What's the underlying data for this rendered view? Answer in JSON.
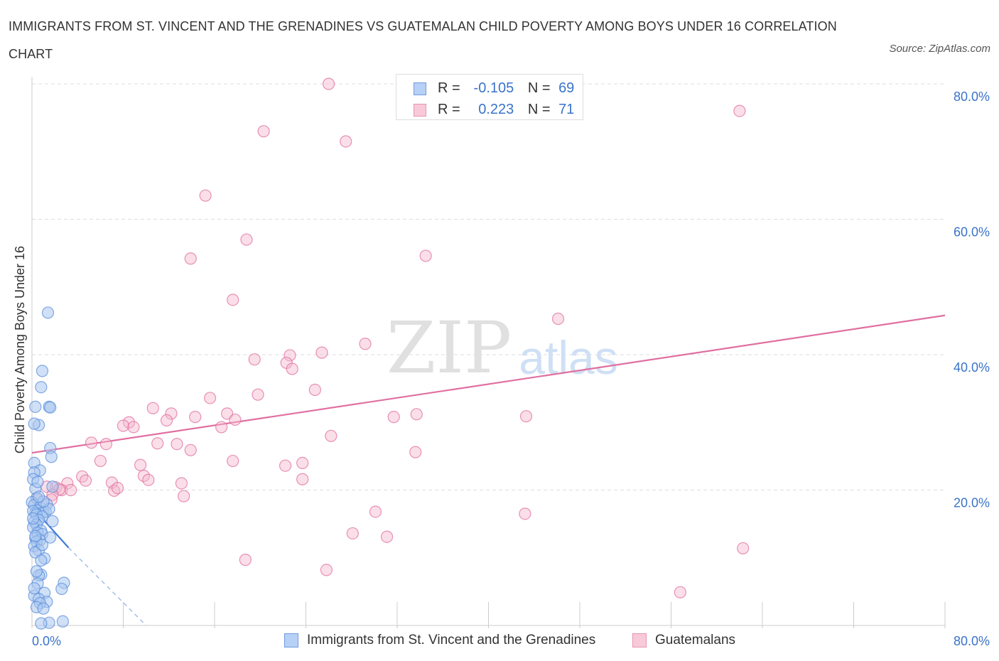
{
  "header": {
    "title": "IMMIGRANTS FROM ST. VINCENT AND THE GRENADINES VS GUATEMALAN CHILD POVERTY AMONG BOYS UNDER 16 CORRELATION CHART",
    "source": "Source: ZipAtlas.com"
  },
  "colors": {
    "blue": "#5b8fd9",
    "blue_fill": "#a9c6f0",
    "pink": "#e06fa0",
    "pink_fill": "#f5b8cd",
    "tick_text": "#3a73c9",
    "grid": "#dddddd"
  },
  "legend": {
    "series1": {
      "r_label": "R =",
      "r_value": "-0.105",
      "n_label": "N =",
      "n_value": "69"
    },
    "series2": {
      "r_label": "R =",
      "r_value": "0.223",
      "n_label": "N =",
      "n_value": "71"
    }
  },
  "watermark": {
    "zip": "ZIP",
    "atlas": "atlas"
  },
  "chart_data": {
    "type": "scatter",
    "title": "IMMIGRANTS FROM ST. VINCENT AND THE GRENADINES VS GUATEMALAN CHILD POVERTY AMONG BOYS UNDER 16 CORRELATION CHART",
    "xlabel": "",
    "ylabel": "Child Poverty Among Boys Under 16",
    "xlim": [
      0,
      80
    ],
    "ylim": [
      0,
      80
    ],
    "x_tick_labels": [
      "0.0%",
      "80.0%"
    ],
    "y_ticks": [
      20,
      40,
      60,
      80
    ],
    "y_tick_labels": [
      "20.0%",
      "40.0%",
      "60.0%",
      "80.0%"
    ],
    "grid": true,
    "legend_position": "top-center",
    "series": [
      {
        "name": "Immigrants from St. Vincent and the Grenadines",
        "color": "#5b8fd9",
        "R": -0.105,
        "N": 69,
        "trend": {
          "x0": 0,
          "y0": 17.5,
          "x1": 3.2,
          "y1": 11.5,
          "dashed_to_x": 10,
          "dashed_to_y": 0
        },
        "points": [
          [
            1.4,
            46.2
          ],
          [
            0.9,
            37.6
          ],
          [
            0.8,
            35.2
          ],
          [
            1.5,
            32.3
          ],
          [
            0.3,
            32.3
          ],
          [
            1.6,
            32.2
          ],
          [
            0.6,
            29.6
          ],
          [
            0.2,
            29.8
          ],
          [
            1.6,
            26.2
          ],
          [
            1.7,
            24.9
          ],
          [
            0.2,
            24.0
          ],
          [
            0.7,
            22.9
          ],
          [
            0.2,
            22.6
          ],
          [
            0.1,
            21.6
          ],
          [
            1.8,
            20.5
          ],
          [
            0.3,
            20.2
          ],
          [
            0.4,
            18.8
          ],
          [
            0.0,
            18.2
          ],
          [
            0.2,
            17.8
          ],
          [
            0.7,
            17.5
          ],
          [
            1.3,
            17.9
          ],
          [
            0.5,
            17.0
          ],
          [
            0.3,
            16.6
          ],
          [
            0.1,
            16.9
          ],
          [
            1.0,
            16.7
          ],
          [
            1.2,
            16.8
          ],
          [
            1.5,
            17.2
          ],
          [
            0.4,
            16.4
          ],
          [
            0.9,
            16.1
          ],
          [
            0.6,
            15.6
          ],
          [
            0.2,
            15.3
          ],
          [
            1.8,
            15.4
          ],
          [
            0.4,
            14.9
          ],
          [
            0.1,
            14.5
          ],
          [
            0.8,
            14.0
          ],
          [
            0.5,
            13.7
          ],
          [
            0.9,
            13.5
          ],
          [
            0.3,
            12.9
          ],
          [
            0.7,
            12.6
          ],
          [
            0.4,
            12.4
          ],
          [
            0.2,
            11.7
          ],
          [
            0.6,
            11.1
          ],
          [
            0.3,
            10.8
          ],
          [
            1.1,
            9.9
          ],
          [
            0.8,
            9.6
          ],
          [
            0.8,
            7.5
          ],
          [
            0.6,
            7.4
          ],
          [
            2.8,
            6.3
          ],
          [
            0.5,
            6.2
          ],
          [
            2.6,
            5.4
          ],
          [
            1.1,
            4.8
          ],
          [
            0.2,
            4.4
          ],
          [
            0.6,
            3.9
          ],
          [
            1.3,
            3.5
          ],
          [
            0.7,
            3.3
          ],
          [
            0.4,
            2.7
          ],
          [
            1.0,
            2.5
          ],
          [
            1.5,
            0.4
          ],
          [
            0.8,
            0.3
          ],
          [
            2.7,
            0.6
          ],
          [
            0.3,
            13.2
          ],
          [
            1.0,
            18.3
          ],
          [
            0.6,
            19.0
          ],
          [
            0.1,
            15.8
          ],
          [
            0.9,
            11.9
          ],
          [
            0.4,
            8.0
          ],
          [
            0.2,
            5.5
          ],
          [
            1.6,
            13.0
          ],
          [
            0.5,
            21.2
          ]
        ]
      },
      {
        "name": "Guatemalans",
        "color": "#e06fa0",
        "R": 0.223,
        "N": 71,
        "trend": {
          "x0": 0,
          "y0": 25.5,
          "x1": 80,
          "y1": 45.8
        },
        "points": [
          [
            26.0,
            80.0
          ],
          [
            62.0,
            76.0
          ],
          [
            20.3,
            73.0
          ],
          [
            27.5,
            71.5
          ],
          [
            15.2,
            63.5
          ],
          [
            18.8,
            57.0
          ],
          [
            13.9,
            54.2
          ],
          [
            34.5,
            54.6
          ],
          [
            17.6,
            48.1
          ],
          [
            46.1,
            45.3
          ],
          [
            29.2,
            41.6
          ],
          [
            25.4,
            40.3
          ],
          [
            22.6,
            39.9
          ],
          [
            19.5,
            39.3
          ],
          [
            22.3,
            38.8
          ],
          [
            22.8,
            37.9
          ],
          [
            24.8,
            34.8
          ],
          [
            19.8,
            34.1
          ],
          [
            15.6,
            33.6
          ],
          [
            10.6,
            32.1
          ],
          [
            12.2,
            31.3
          ],
          [
            17.1,
            31.3
          ],
          [
            14.3,
            30.8
          ],
          [
            33.7,
            31.2
          ],
          [
            31.7,
            30.8
          ],
          [
            43.3,
            30.9
          ],
          [
            17.8,
            30.4
          ],
          [
            11.8,
            30.3
          ],
          [
            8.5,
            30.0
          ],
          [
            8.0,
            29.5
          ],
          [
            8.9,
            29.3
          ],
          [
            16.6,
            29.3
          ],
          [
            26.2,
            28.0
          ],
          [
            5.2,
            27.0
          ],
          [
            6.5,
            26.8
          ],
          [
            11.0,
            26.9
          ],
          [
            12.7,
            26.8
          ],
          [
            13.9,
            25.9
          ],
          [
            33.6,
            25.6
          ],
          [
            17.6,
            24.3
          ],
          [
            6.0,
            24.3
          ],
          [
            9.5,
            23.7
          ],
          [
            23.7,
            24.0
          ],
          [
            22.2,
            23.6
          ],
          [
            4.4,
            22.0
          ],
          [
            4.7,
            21.4
          ],
          [
            9.8,
            22.1
          ],
          [
            10.2,
            21.5
          ],
          [
            7.0,
            21.1
          ],
          [
            3.1,
            21.0
          ],
          [
            13.1,
            21.0
          ],
          [
            23.7,
            21.6
          ],
          [
            2.1,
            20.4
          ],
          [
            2.6,
            20.0
          ],
          [
            3.4,
            20.0
          ],
          [
            7.2,
            19.9
          ],
          [
            7.5,
            20.3
          ],
          [
            1.3,
            20.5
          ],
          [
            2.4,
            20.1
          ],
          [
            1.8,
            19.3
          ],
          [
            13.3,
            19.1
          ],
          [
            1.7,
            18.6
          ],
          [
            30.1,
            16.8
          ],
          [
            43.2,
            16.5
          ],
          [
            28.1,
            13.6
          ],
          [
            31.1,
            13.1
          ],
          [
            62.3,
            11.4
          ],
          [
            18.7,
            9.7
          ],
          [
            25.8,
            8.2
          ],
          [
            56.8,
            4.9
          ],
          [
            0.5,
            18.7
          ]
        ]
      }
    ]
  }
}
